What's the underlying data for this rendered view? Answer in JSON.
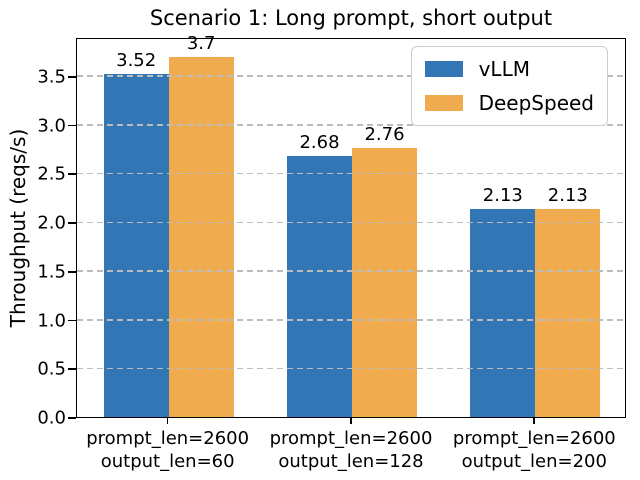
{
  "chart_data": {
    "type": "bar",
    "title": "Scenario 1: Long prompt, short output",
    "ylabel": "Throughput (reqs/s)",
    "categories": [
      "prompt_len=2600\noutput_len=60",
      "prompt_len=2600\noutput_len=128",
      "prompt_len=2600\noutput_len=200"
    ],
    "series": [
      {
        "name": "vLLM",
        "color": "#3376b5",
        "values": [
          3.52,
          2.68,
          2.13
        ],
        "value_labels": [
          "3.52",
          "2.68",
          "2.13"
        ]
      },
      {
        "name": "DeepSpeed",
        "color": "#efab4e",
        "values": [
          3.7,
          2.76,
          2.13
        ],
        "value_labels": [
          "3.7",
          "2.76",
          "2.13"
        ]
      }
    ],
    "yticks": [
      0.0,
      0.5,
      1.0,
      1.5,
      2.0,
      2.5,
      3.0,
      3.5
    ],
    "ytick_labels": [
      "0.0",
      "0.5",
      "1.0",
      "1.5",
      "2.0",
      "2.5",
      "3.0",
      "3.5"
    ],
    "ylim": [
      0,
      3.9
    ],
    "grid": {
      "axis": "y",
      "style": "dashed",
      "color": "#bcbcbc",
      "above_bars": true
    },
    "legend": {
      "position": "upper right",
      "entries": [
        "vLLM",
        "DeepSpeed"
      ]
    }
  }
}
